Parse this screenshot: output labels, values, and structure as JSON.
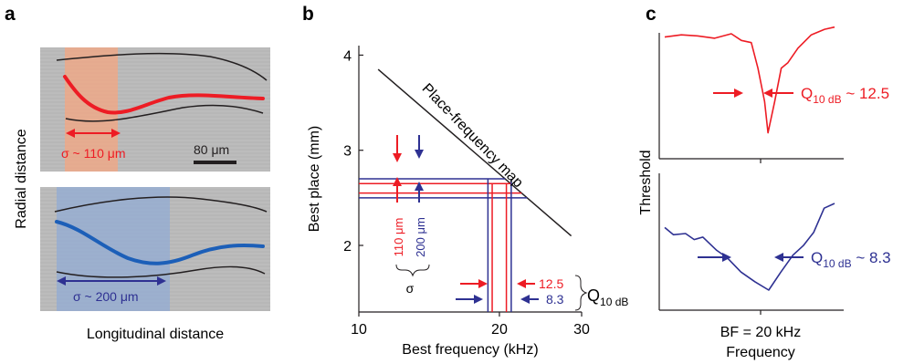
{
  "panels": {
    "a": {
      "letter": "a",
      "ylabel": "Radial distance",
      "xlabel": "Longitudinal distance",
      "top_sigma": "σ ~ 110 μm",
      "bottom_sigma": "σ ~ 200 μm",
      "scalebar": "80 μm"
    },
    "b": {
      "letter": "b",
      "map_label": "Place-frequency map",
      "spread_red": "110 μm",
      "spread_blue": "200 μm",
      "sigma": "σ",
      "q_red": "12.5",
      "q_blue": "8.3",
      "q_label": "Q",
      "q_sub": "10 dB"
    },
    "c": {
      "letter": "c",
      "ylabel": "Threshold",
      "xlabel": "Frequency",
      "bf_label": "BF = 20 kHz",
      "q_label": "Q",
      "q_sub": "10 dB",
      "q_red_value": " ~ 12.5",
      "q_blue_value": " ~ 8.3"
    }
  },
  "colors": {
    "red": "#ed1c24",
    "blue": "#2e3192",
    "black": "#231f20",
    "red_fill": "#f4a582",
    "blue_fill": "#8fa9d6"
  },
  "chart_data": [
    {
      "type": "line",
      "panel": "b",
      "xlabel": "Best  frequency (kHz)",
      "ylabel": "Best place (mm)",
      "xscale": "log",
      "xlim": [
        10,
        30
      ],
      "ylim": [
        1.3,
        4.1
      ],
      "xticks": [
        10,
        20,
        30
      ],
      "yticks": [
        2,
        3,
        4
      ],
      "series": [
        {
          "name": "Place-frequency map",
          "x": [
            11,
            28.5
          ],
          "y": [
            3.85,
            2.1
          ]
        }
      ],
      "red_place_band": [
        2.55,
        2.65
      ],
      "blue_place_band": [
        2.5,
        2.7
      ],
      "red_freq_band": [
        19.3,
        20.7
      ],
      "blue_freq_band": [
        18.9,
        21.2
      ]
    },
    {
      "type": "line",
      "panel": "c",
      "xlabel": "Frequency",
      "ylabel": "Threshold",
      "series": [
        {
          "name": "Q10 dB ~ 12.5",
          "color": "red",
          "x": [
            0,
            0.5,
            1,
            1.5,
            2,
            2.3,
            2.6,
            2.8,
            3,
            3.1,
            3.3,
            3.5,
            3.7,
            4,
            4.4,
            4.8,
            5.1
          ],
          "y": [
            1.2,
            1.0,
            1.1,
            1.3,
            0.9,
            1.5,
            1.7,
            4,
            7,
            9.8,
            7,
            4,
            3.5,
            2.2,
            1.0,
            0.5,
            0.3
          ]
        },
        {
          "name": "Q10 dB ~ 8.3",
          "color": "blue",
          "x": [
            0,
            0.25,
            0.6,
            0.85,
            1.1,
            1.5,
            1.8,
            2.2,
            2.6,
            3.0,
            3.35,
            3.7,
            4.0,
            4.3,
            4.6,
            4.9
          ],
          "y": [
            4.8,
            5.4,
            5.3,
            5.8,
            5.6,
            6.7,
            7.3,
            8.5,
            9.3,
            10,
            8.5,
            7.1,
            6.3,
            5.2,
            3.2,
            2.8
          ]
        }
      ]
    }
  ]
}
